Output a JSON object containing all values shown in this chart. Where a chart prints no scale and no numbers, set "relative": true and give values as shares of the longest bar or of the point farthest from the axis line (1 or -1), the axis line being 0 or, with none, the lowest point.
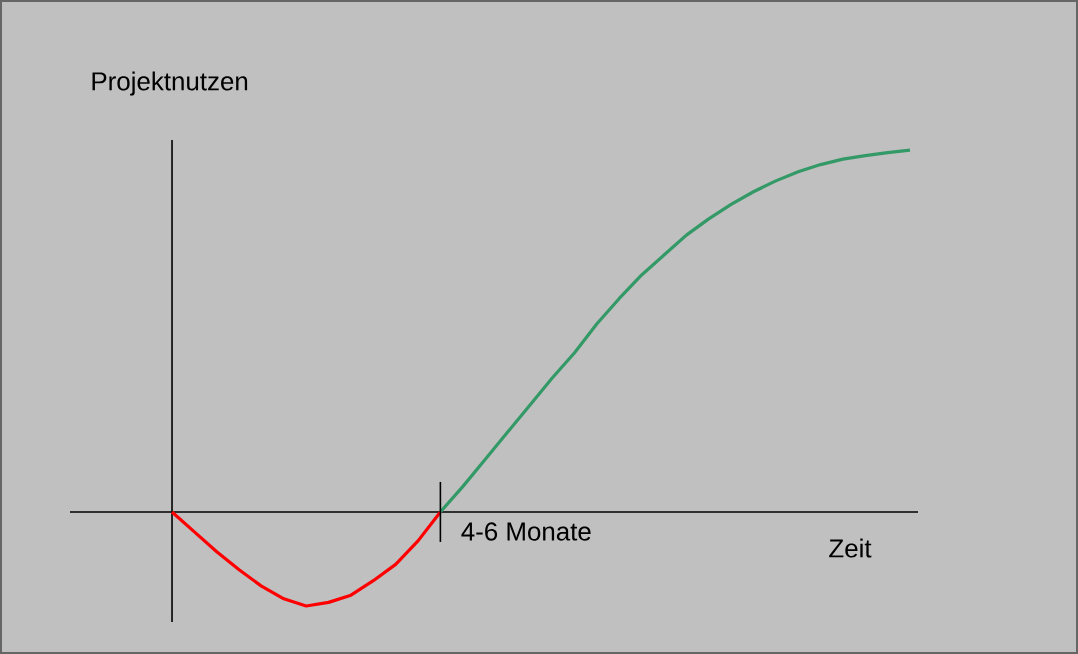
{
  "chart_data": {
    "type": "line",
    "relative": true,
    "xlabel": "Zeit",
    "ylabel": "Projektnutzen",
    "annotations": [
      "4-6 Monate"
    ],
    "categories": [
      null,
      null,
      null,
      null,
      null,
      null,
      null,
      null,
      null,
      null,
      null,
      null,
      null,
      null,
      null,
      null,
      null,
      null,
      null,
      null,
      null,
      null,
      null,
      null,
      null,
      null,
      null,
      null,
      null,
      null,
      null,
      null,
      null,
      null
    ],
    "series": [
      {
        "color": "#ff0000",
        "values": [
          0,
          -0.055,
          -0.11,
          -0.16,
          -0.205,
          -0.24,
          -0.26,
          -0.25,
          -0.23,
          -0.19,
          -0.145,
          -0.08,
          0,
          null,
          null,
          null,
          null,
          null,
          null,
          null,
          null,
          null,
          null,
          null,
          null,
          null,
          null,
          null,
          null,
          null,
          null,
          null,
          null,
          null
        ]
      },
      {
        "color": "#339966",
        "values": [
          null,
          null,
          null,
          null,
          null,
          null,
          null,
          null,
          null,
          null,
          null,
          null,
          0,
          0.07,
          0.145,
          0.22,
          0.295,
          0.37,
          0.44,
          0.52,
          0.59,
          0.655,
          0.71,
          0.765,
          0.81,
          0.85,
          0.885,
          0.915,
          0.94,
          0.96,
          0.975,
          0.985,
          0.993,
          1
        ]
      }
    ]
  }
}
